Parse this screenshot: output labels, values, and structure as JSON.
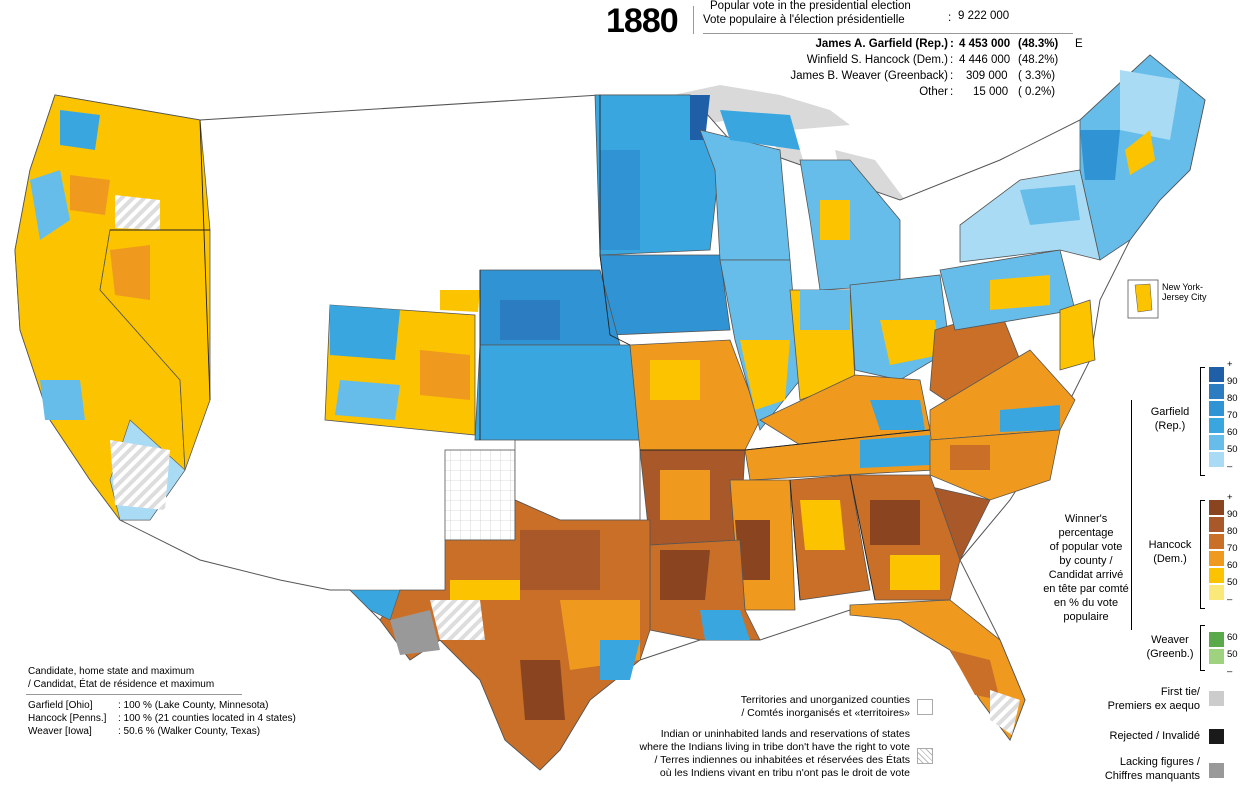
{
  "header": {
    "year": "1880",
    "popular_vote_label_en": "Popular vote in the presidential election",
    "popular_vote_label_fr": "Vote populaire à l'élection présidentielle",
    "popular_vote_colon": ":",
    "popular_vote_total": "9 222 000",
    "candidates": [
      {
        "name": "James A. Garfield (Rep.)",
        "colon": ":",
        "votes": "4 453 000",
        "pct": "(48.3%)",
        "mark": "E"
      },
      {
        "name": "Winfield S. Hancock (Dem.)",
        "colon": ":",
        "votes": "4 446 000",
        "pct": "(48.2%)",
        "mark": ""
      },
      {
        "name": "James B. Weaver (Greenback)",
        "colon": ":",
        "votes": "309 000",
        "pct": "( 3.3%)",
        "mark": ""
      },
      {
        "name": "Other",
        "colon": ":",
        "votes": "15 000",
        "pct": "( 0.2%)",
        "mark": ""
      }
    ]
  },
  "inset_label": "New York-\nJersey City",
  "legend": {
    "title": "Winner's\npercentage\nof popular vote\nby county /\nCandidat arrivé\nen tête par comté\nen % du vote\npopulaire",
    "garfield": {
      "label": "Garfield\n(Rep.)",
      "colors": [
        "#1f5fa8",
        "#2c7cc1",
        "#2f93d4",
        "#3aa6e0",
        "#66bde9",
        "#a9dbf5"
      ],
      "ticks": [
        "+",
        "90",
        "80",
        "70",
        "60",
        "50",
        "–"
      ]
    },
    "hancock": {
      "label": "Hancock\n(Dem.)",
      "colors": [
        "#8a4520",
        "#a9582a",
        "#c96f28",
        "#ef9a1e",
        "#fcc300",
        "#fbe87a"
      ],
      "ticks": [
        "+",
        "90",
        "80",
        "70",
        "60",
        "50",
        "–"
      ]
    },
    "weaver": {
      "label": "Weaver\n(Greenb.)",
      "colors": [
        "#5aa94a",
        "#9fd27f"
      ],
      "ticks": [
        "60",
        "50",
        "–"
      ]
    },
    "first_tie": "First tie/\nPremiers ex aequo",
    "rejected": "Rejected / Invalidé",
    "lacking": "Lacking figures /\nChiffres manquants",
    "territories": "Territories and unorganized counties\n/ Comtés inorganisés et «territoires»",
    "indian": "Indian or uninhabited lands and reservations of states\nwhere the Indians living in tribe don't have the right to vote\n/ Terres indiennes ou inhabitées et réservées des États\noù les Indiens vivant en tribu n'ont pas le droit de vote",
    "status_colors": {
      "tie": "#cccccc",
      "rejected": "#1a1a1a",
      "lacking": "#999999"
    }
  },
  "maximum": {
    "title": "Candidate, home state and maximum\n/ Candidat, État de résidence et maximum",
    "rows": [
      {
        "candidate": "Garfield [Ohio]",
        "value": ": 100 % (Lake County, Minnesota)"
      },
      {
        "candidate": "Hancock [Penns.]",
        "value": ": 100 % (21 counties located in 4 states)"
      },
      {
        "candidate": "Weaver [Iowa]",
        "value": ":   50.6 % (Walker County, Texas)"
      }
    ]
  }
}
